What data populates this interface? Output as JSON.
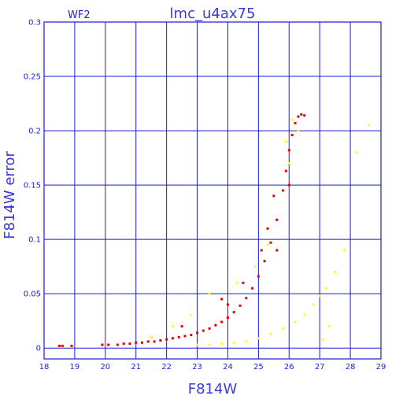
{
  "chart_data": {
    "type": "scatter",
    "title": "lmc_u4ax75",
    "subtitle": "WF2",
    "xlabel": "F814W",
    "ylabel": "F814W error",
    "xlim": [
      18,
      29
    ],
    "ylim": [
      -0.01,
      0.3
    ],
    "x_ticks": [
      "18",
      "19",
      "20",
      "21",
      "22",
      "23",
      "24",
      "25",
      "26",
      "27",
      "28",
      "29"
    ],
    "y_ticks": [
      "0",
      "0.05",
      "0.1",
      "0.15",
      "0.2",
      "0.25",
      "0.3"
    ],
    "grid": true,
    "colors": {
      "grid": "#1a1ad6",
      "axis_text": "#1f1fd0",
      "series_red": "#e60000",
      "series_yellow": "#ffff1a"
    },
    "series": [
      {
        "color": "red",
        "points": [
          [
            18.5,
            0.002
          ],
          [
            18.6,
            0.002
          ],
          [
            18.9,
            0.002
          ],
          [
            19.9,
            0.003
          ],
          [
            20.1,
            0.003
          ],
          [
            20.4,
            0.003
          ],
          [
            20.6,
            0.004
          ],
          [
            20.8,
            0.004
          ],
          [
            21.0,
            0.005
          ],
          [
            21.2,
            0.005
          ],
          [
            21.4,
            0.006
          ],
          [
            21.6,
            0.006
          ],
          [
            21.8,
            0.007
          ],
          [
            22.0,
            0.008
          ],
          [
            22.2,
            0.009
          ],
          [
            22.4,
            0.01
          ],
          [
            22.6,
            0.011
          ],
          [
            22.8,
            0.012
          ],
          [
            23.0,
            0.014
          ],
          [
            23.2,
            0.016
          ],
          [
            23.4,
            0.018
          ],
          [
            23.6,
            0.021
          ],
          [
            23.8,
            0.024
          ],
          [
            24.0,
            0.028
          ],
          [
            24.2,
            0.033
          ],
          [
            24.4,
            0.039
          ],
          [
            24.6,
            0.046
          ],
          [
            24.8,
            0.055
          ],
          [
            25.0,
            0.066
          ],
          [
            25.2,
            0.08
          ],
          [
            25.4,
            0.097
          ],
          [
            25.6,
            0.118
          ],
          [
            25.8,
            0.145
          ],
          [
            25.9,
            0.163
          ],
          [
            26.0,
            0.182
          ],
          [
            26.1,
            0.196
          ],
          [
            26.2,
            0.207
          ],
          [
            26.3,
            0.213
          ],
          [
            26.4,
            0.215
          ],
          [
            26.5,
            0.214
          ],
          [
            24.5,
            0.06
          ],
          [
            25.1,
            0.09
          ],
          [
            25.3,
            0.11
          ],
          [
            25.6,
            0.09
          ],
          [
            24.0,
            0.04
          ],
          [
            23.8,
            0.045
          ],
          [
            25.5,
            0.14
          ],
          [
            26.0,
            0.15
          ],
          [
            22.5,
            0.02
          ],
          [
            21.5,
            0.01
          ]
        ]
      },
      {
        "color": "yellow",
        "points": [
          [
            23.0,
            0.003
          ],
          [
            23.4,
            0.003
          ],
          [
            23.8,
            0.004
          ],
          [
            24.2,
            0.005
          ],
          [
            24.6,
            0.006
          ],
          [
            25.0,
            0.009
          ],
          [
            25.4,
            0.013
          ],
          [
            25.8,
            0.018
          ],
          [
            26.2,
            0.024
          ],
          [
            26.5,
            0.031
          ],
          [
            26.8,
            0.04
          ],
          [
            27.0,
            0.048
          ],
          [
            27.2,
            0.055
          ],
          [
            27.5,
            0.07
          ],
          [
            27.8,
            0.09
          ],
          [
            28.2,
            0.18
          ],
          [
            28.6,
            0.205
          ],
          [
            26.1,
            0.21
          ],
          [
            26.3,
            0.2
          ],
          [
            25.9,
            0.19
          ],
          [
            26.0,
            0.17
          ],
          [
            25.3,
            0.095
          ],
          [
            24.9,
            0.075
          ],
          [
            24.3,
            0.06
          ],
          [
            23.4,
            0.05
          ],
          [
            22.8,
            0.03
          ],
          [
            22.2,
            0.02
          ],
          [
            21.5,
            0.01
          ],
          [
            27.3,
            0.02
          ],
          [
            27.1,
            0.008
          ]
        ]
      }
    ]
  }
}
